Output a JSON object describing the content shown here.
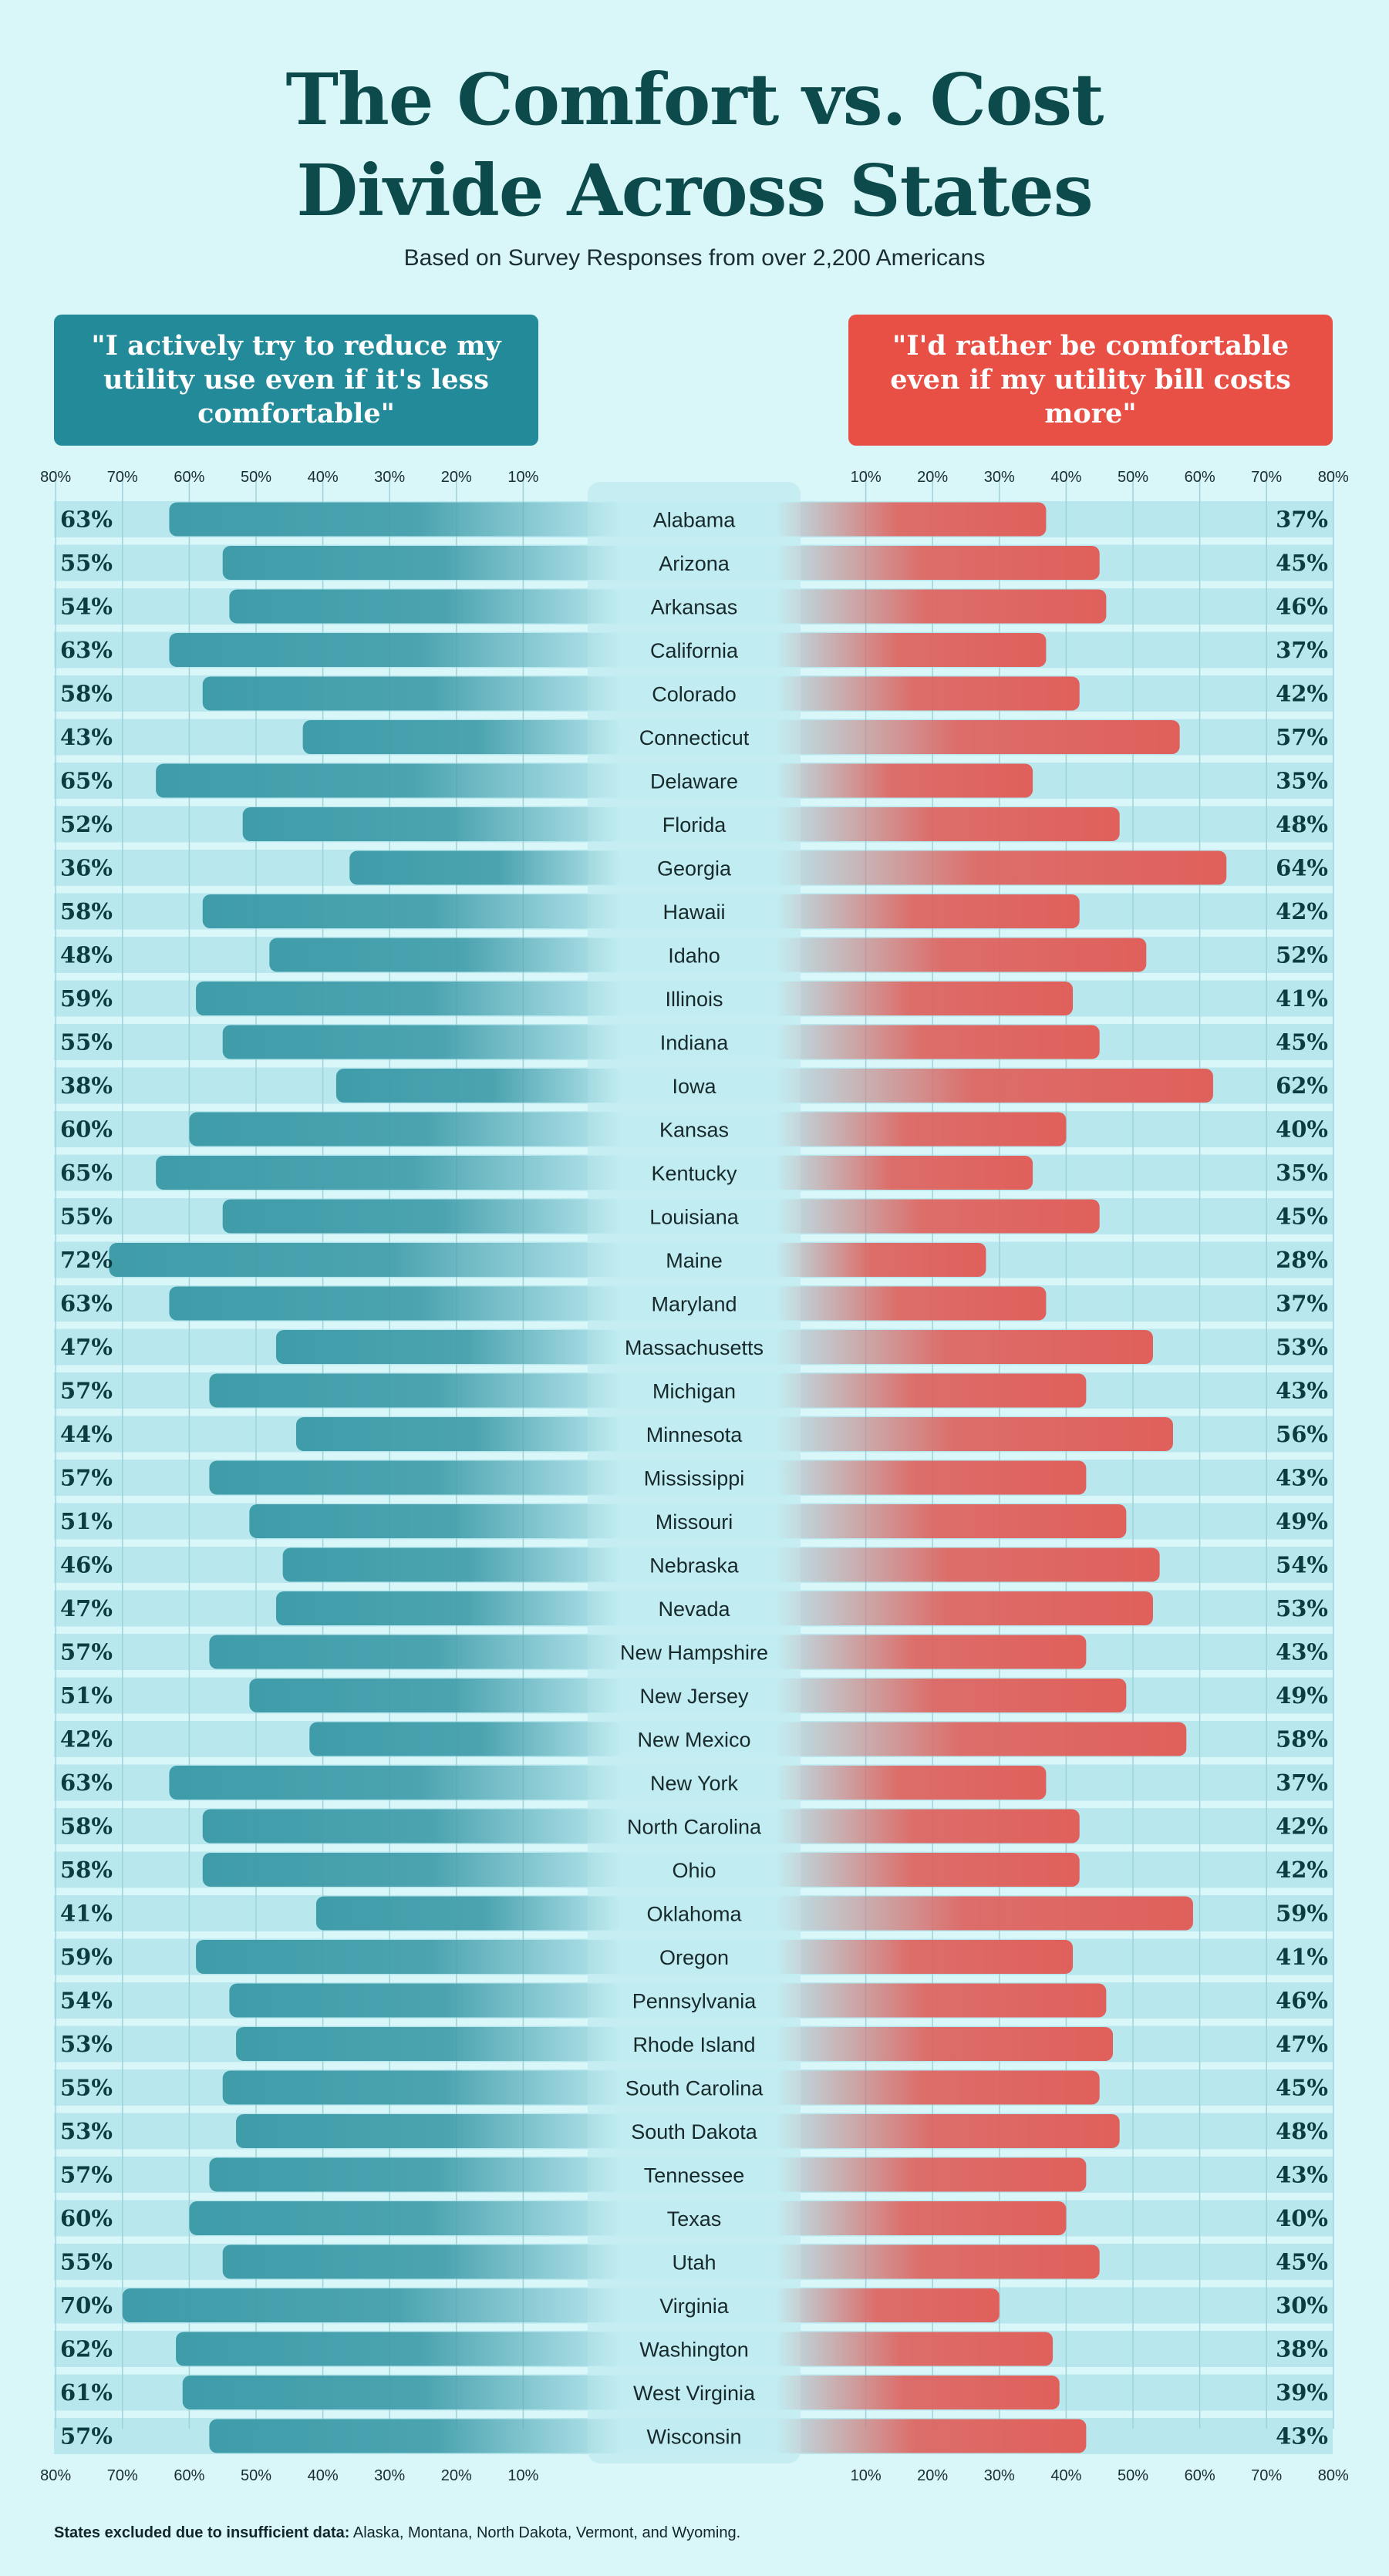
{
  "title_line1": "The Comfort vs. Cost",
  "title_line2": "Divide Across States",
  "subtitle": "Based on Survey Responses from over 2,200 Americans",
  "left_header": "\"I actively try to reduce my utility use even if it's less comfortable\"",
  "right_header": "\"I'd rather be comfortable even if my utility bill costs more\"",
  "footnote_label": "States excluded due to insufficient data:",
  "footnote_text": "Alaska, Montana, North Dakota, Vermont, and Wyoming.",
  "colors": {
    "background": "#d9f6f8",
    "row_band": "#b9e7ee",
    "left_bar": "#3f9ca9",
    "right_bar": "#e0605b",
    "left_header": "#238a99",
    "right_header": "#e84f45",
    "title": "#0c4a4b"
  },
  "chart_data": {
    "type": "bar",
    "orientation": "horizontal-diverging",
    "xlim": [
      0,
      80
    ],
    "tick_labels": [
      "80%",
      "70%",
      "60%",
      "50%",
      "40%",
      "30%",
      "20%",
      "10%"
    ],
    "right_tick_labels": [
      "10%",
      "20%",
      "30%",
      "40%",
      "50%",
      "60%",
      "70%",
      "80%"
    ],
    "categories": [
      "Alabama",
      "Arizona",
      "Arkansas",
      "California",
      "Colorado",
      "Connecticut",
      "Delaware",
      "Florida",
      "Georgia",
      "Hawaii",
      "Idaho",
      "Illinois",
      "Indiana",
      "Iowa",
      "Kansas",
      "Kentucky",
      "Louisiana",
      "Maine",
      "Maryland",
      "Massachusetts",
      "Michigan",
      "Minnesota",
      "Mississippi",
      "Missouri",
      "Nebraska",
      "Nevada",
      "New Hampshire",
      "New Jersey",
      "New Mexico",
      "New York",
      "North Carolina",
      "Ohio",
      "Oklahoma",
      "Oregon",
      "Pennsylvania",
      "Rhode Island",
      "South Carolina",
      "South Dakota",
      "Tennessee",
      "Texas",
      "Utah",
      "Virginia",
      "Washington",
      "West Virginia",
      "Wisconsin"
    ],
    "series": [
      {
        "values": [
          63,
          55,
          54,
          63,
          58,
          43,
          65,
          52,
          36,
          58,
          48,
          59,
          55,
          38,
          60,
          65,
          55,
          72,
          63,
          47,
          57,
          44,
          57,
          51,
          46,
          47,
          57,
          51,
          42,
          63,
          58,
          58,
          41,
          59,
          54,
          53,
          55,
          53,
          57,
          60,
          55,
          70,
          62,
          61,
          57
        ]
      },
      {
        "values": [
          37,
          45,
          46,
          37,
          42,
          57,
          35,
          48,
          64,
          42,
          52,
          41,
          45,
          62,
          40,
          35,
          45,
          28,
          37,
          53,
          43,
          56,
          43,
          49,
          54,
          53,
          43,
          49,
          58,
          37,
          42,
          42,
          59,
          41,
          46,
          47,
          45,
          48,
          43,
          40,
          45,
          30,
          38,
          39,
          43
        ]
      }
    ],
    "grid": true
  }
}
